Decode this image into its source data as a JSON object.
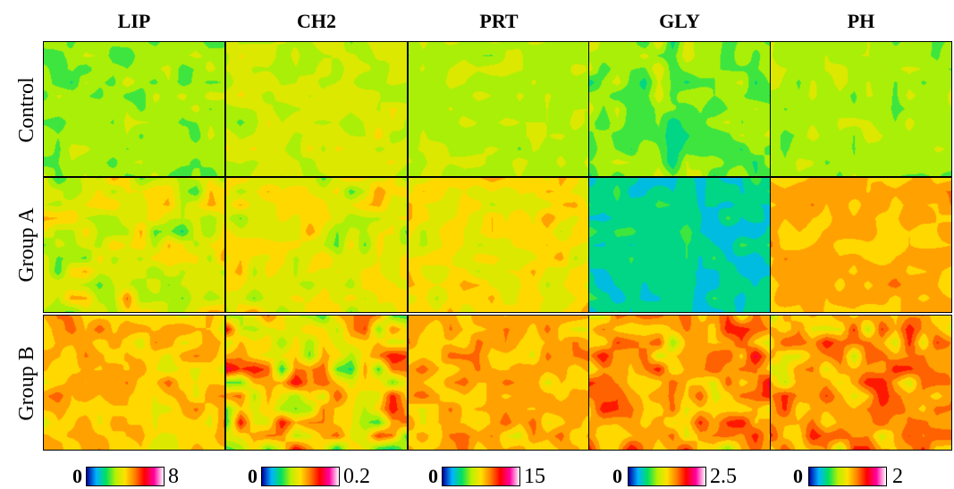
{
  "chart_data": {
    "type": "heatmap",
    "description_grid": "5 columns x 3 rows of chemical-image heatmaps",
    "columns": [
      "LIP",
      "CH2",
      "PRT",
      "GLY",
      "PH"
    ],
    "rows": [
      "Control",
      "Group A",
      "Group B"
    ],
    "colormap": [
      "#ffffff",
      "#0000a0",
      "#00b4ff",
      "#00e060",
      "#b8f000",
      "#ffe000",
      "#ff8000",
      "#ff0000",
      "#ff00a0",
      "#ffffff"
    ],
    "scales": [
      {
        "column": "LIP",
        "min": "0",
        "max": "8"
      },
      {
        "column": "CH2",
        "min": "0",
        "max": "0.2"
      },
      {
        "column": "PRT",
        "min": "0",
        "max": "15"
      },
      {
        "column": "GLY",
        "min": "0",
        "max": "2.5"
      },
      {
        "column": "PH",
        "min": "0",
        "max": "2"
      }
    ],
    "panels": [
      {
        "row": "Control",
        "column": "LIP",
        "mean_level": 0.42,
        "variance": 0.06
      },
      {
        "row": "Control",
        "column": "CH2",
        "mean_level": 0.48,
        "variance": 0.06
      },
      {
        "row": "Control",
        "column": "PRT",
        "mean_level": 0.45,
        "variance": 0.04
      },
      {
        "row": "Control",
        "column": "GLY",
        "mean_level": 0.4,
        "variance": 0.09
      },
      {
        "row": "Control",
        "column": "PH",
        "mean_level": 0.43,
        "variance": 0.05
      },
      {
        "row": "Group A",
        "column": "LIP",
        "mean_level": 0.5,
        "variance": 0.12
      },
      {
        "row": "Group A",
        "column": "CH2",
        "mean_level": 0.52,
        "variance": 0.1
      },
      {
        "row": "Group A",
        "column": "PRT",
        "mean_level": 0.55,
        "variance": 0.08
      },
      {
        "row": "Group A",
        "column": "GLY",
        "mean_level": 0.27,
        "variance": 0.06
      },
      {
        "row": "Group A",
        "column": "PH",
        "mean_level": 0.62,
        "variance": 0.06
      },
      {
        "row": "Group B",
        "column": "LIP",
        "mean_level": 0.6,
        "variance": 0.08
      },
      {
        "row": "Group B",
        "column": "CH2",
        "mean_level": 0.55,
        "variance": 0.2
      },
      {
        "row": "Group B",
        "column": "PRT",
        "mean_level": 0.62,
        "variance": 0.08
      },
      {
        "row": "Group B",
        "column": "GLY",
        "mean_level": 0.64,
        "variance": 0.14
      },
      {
        "row": "Group B",
        "column": "PH",
        "mean_level": 0.64,
        "variance": 0.14
      }
    ]
  }
}
